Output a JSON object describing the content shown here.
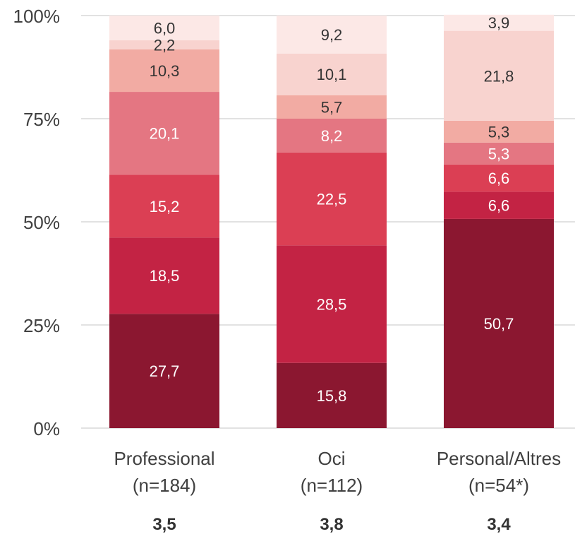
{
  "chart_data": {
    "type": "bar",
    "stacked": true,
    "percent_stacked": true,
    "categories": [
      "Professional",
      "Oci",
      "Personal/Altres"
    ],
    "category_n": [
      "(n=184)",
      "(n=112)",
      "(n=54*)"
    ],
    "category_scores": [
      "3,5",
      "3,8",
      "3,4"
    ],
    "y_ticks": [
      "0%",
      "25%",
      "50%",
      "75%",
      "100%"
    ],
    "ylim": [
      0,
      100
    ],
    "grid": true,
    "series": [
      {
        "color": "#8b1730",
        "values": [
          27.7,
          15.8,
          50.7
        ],
        "labels": [
          "27,7",
          "15,8",
          "50,7"
        ],
        "label_color": "#ffffff"
      },
      {
        "color": "#c32344",
        "values": [
          18.5,
          28.5,
          6.6
        ],
        "labels": [
          "18,5",
          "28,5",
          "6,6"
        ],
        "label_color": "#ffffff"
      },
      {
        "color": "#db3f54",
        "values": [
          15.2,
          22.5,
          6.6
        ],
        "labels": [
          "15,2",
          "22,5",
          "6,6"
        ],
        "label_color": "#ffffff"
      },
      {
        "color": "#e47682",
        "values": [
          20.1,
          8.2,
          5.3
        ],
        "labels": [
          "20,1",
          "8,2",
          "5,3"
        ],
        "label_color": "#ffffff"
      },
      {
        "color": "#f2aba3",
        "values": [
          10.3,
          5.7,
          5.3
        ],
        "labels": [
          "10,3",
          "5,7",
          "5,3"
        ],
        "label_color": "#333333"
      },
      {
        "color": "#f8d3cf",
        "values": [
          2.2,
          10.1,
          21.8
        ],
        "labels": [
          "2,2",
          "10,1",
          "21,8"
        ],
        "label_color": "#333333"
      },
      {
        "color": "#fce8e6",
        "values": [
          6.0,
          9.2,
          3.9
        ],
        "labels": [
          "6,0",
          "9,2",
          "3,9"
        ],
        "label_color": "#333333"
      }
    ]
  }
}
